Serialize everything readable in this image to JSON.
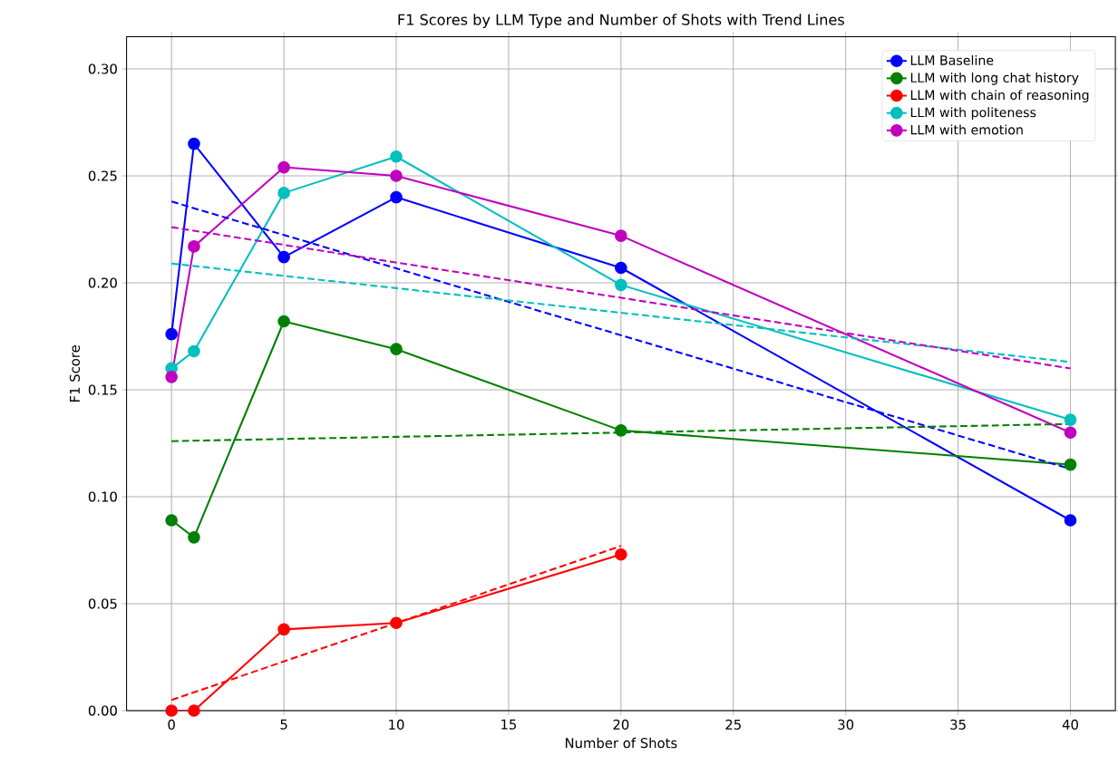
{
  "chart_data": {
    "type": "line",
    "title": "F1 Scores by LLM Type and Number of Shots with Trend Lines",
    "xlabel": "Number of Shots",
    "ylabel": "F1 Score",
    "xlim": [
      -2,
      42
    ],
    "ylim": [
      0,
      0.315
    ],
    "xticks": [
      0,
      5,
      10,
      15,
      20,
      25,
      30,
      35,
      40
    ],
    "yticks": [
      {
        "value": 0,
        "label": "0.00"
      },
      {
        "value": 0.05,
        "label": "0.05"
      },
      {
        "value": 0.1,
        "label": "0.10"
      },
      {
        "value": 0.15,
        "label": "0.15"
      },
      {
        "value": 0.2,
        "label": "0.20"
      },
      {
        "value": 0.25,
        "label": "0.25"
      },
      {
        "value": 0.3,
        "label": "0.30"
      }
    ],
    "grid": true,
    "legend": "top right",
    "marker": "circle",
    "line_style": "solid",
    "series": [
      {
        "name": "LLM Baseline",
        "color": "#0000ff",
        "x": [
          0,
          1,
          5,
          10,
          20,
          40
        ],
        "values": [
          0.176,
          0.265,
          0.212,
          0.24,
          0.207,
          0.089
        ]
      },
      {
        "name": "LLM with long chat history",
        "color": "#008000",
        "x": [
          0,
          1,
          5,
          10,
          20,
          40
        ],
        "values": [
          0.089,
          0.081,
          0.182,
          0.169,
          0.131,
          0.115
        ]
      },
      {
        "name": "LLM with chain of reasoning",
        "color": "#ff0000",
        "x": [
          0,
          1,
          5,
          10,
          20
        ],
        "values": [
          0,
          0,
          0.038,
          0.041,
          0.073
        ]
      },
      {
        "name": "LLM with politeness",
        "color": "#00bfbf",
        "x": [
          0,
          1,
          5,
          10,
          20,
          40
        ],
        "values": [
          0.16,
          0.168,
          0.242,
          0.259,
          0.199,
          0.136
        ]
      },
      {
        "name": "LLM with emotion",
        "color": "#bf00bf",
        "x": [
          0,
          1,
          5,
          10,
          20,
          40
        ],
        "values": [
          0.156,
          0.217,
          0.254,
          0.25,
          0.222,
          0.13
        ]
      },
      {
        "type": "line",
        "color": "#0000ff",
        "x": [
          0,
          40
        ],
        "values": [
          0.238,
          0.113
        ],
        "marker": "none",
        "line_style": "dashed"
      },
      {
        "type": "line",
        "color": "#008000",
        "x": [
          0,
          40
        ],
        "values": [
          0.126,
          0.134
        ],
        "marker": "none",
        "line_style": "dashed"
      },
      {
        "type": "line",
        "color": "#ff0000",
        "x": [
          0,
          20
        ],
        "values": [
          0.005,
          0.077
        ],
        "marker": "none",
        "line_style": "dashed"
      },
      {
        "type": "line",
        "color": "#00bfbf",
        "x": [
          0,
          40
        ],
        "values": [
          0.209,
          0.163
        ],
        "marker": "none",
        "line_style": "dashed"
      },
      {
        "type": "line",
        "color": "#bf00bf",
        "x": [
          0,
          40
        ],
        "values": [
          0.226,
          0.16
        ],
        "marker": "none",
        "line_style": "dashed"
      }
    ]
  }
}
